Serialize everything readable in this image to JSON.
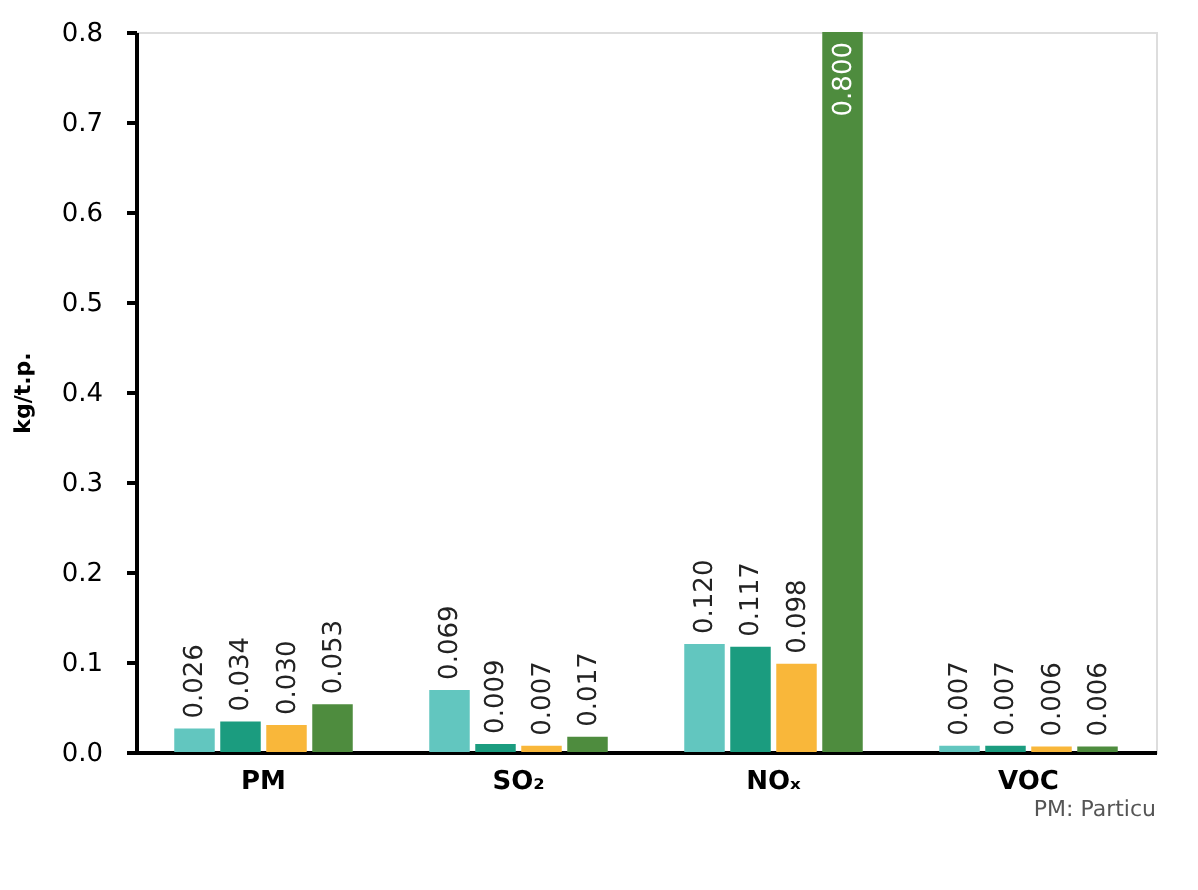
{
  "chart_data": {
    "type": "bar",
    "ylabel": "kg/t.p.",
    "categories": [
      "PM",
      "SO₂",
      "NOₓ",
      "VOC"
    ],
    "series": [
      {
        "color": "#62c6bf",
        "values": [
          0.026,
          0.069,
          0.12,
          0.007
        ],
        "value_labels": [
          "0.026",
          "0.069",
          "0.120",
          "0.007"
        ]
      },
      {
        "color": "#1b9c7f",
        "values": [
          0.034,
          0.009,
          0.117,
          0.007
        ],
        "value_labels": [
          "0.034",
          "0.009",
          "0.117",
          "0.007"
        ]
      },
      {
        "color": "#f9b73a",
        "values": [
          0.03,
          0.007,
          0.098,
          0.006
        ],
        "value_labels": [
          "0.030",
          "0.007",
          "0.098",
          "0.006"
        ]
      },
      {
        "color": "#4e8c3e",
        "values": [
          0.053,
          0.017,
          0.8,
          0.006
        ],
        "value_labels": [
          "0.053",
          "0.017",
          "0.800",
          "0.006"
        ]
      }
    ],
    "ylim": [
      0,
      0.8
    ],
    "yticks": [
      {
        "value": 0,
        "label": "0.0"
      },
      0.1,
      0.2,
      0.3,
      0.4,
      0.5,
      0.6,
      0.7,
      0.8
    ],
    "grid": false,
    "legend": false,
    "annotations": [
      "PM: Particu"
    ]
  }
}
